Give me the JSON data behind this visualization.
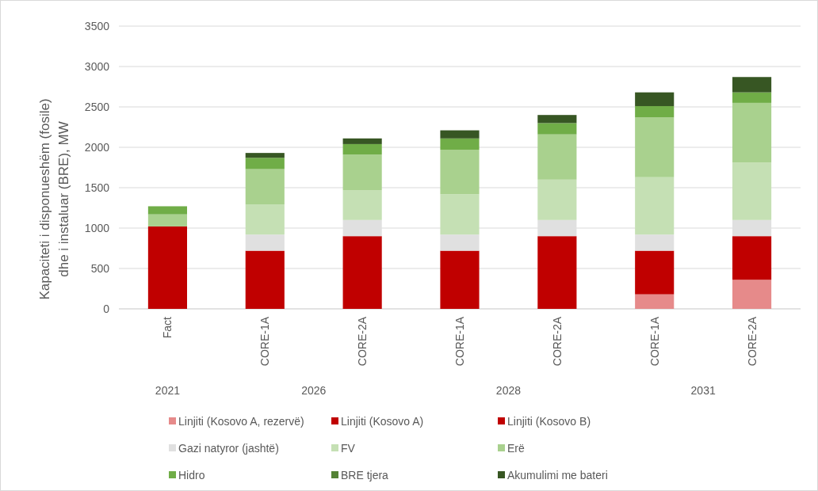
{
  "chart_data": {
    "type": "bar",
    "stacked": true,
    "ylabel": "Kapaciteti i disponueshëm (fosile) dhe i instaluar (BRE), MW",
    "categories": [
      "Fact",
      "CORE-1A",
      "CORE-2A",
      "CORE-1A",
      "CORE-2A",
      "CORE-1A",
      "CORE-2A"
    ],
    "annotations": [
      "2021",
      "2026",
      "2028",
      "2031"
    ],
    "ylim": [
      0,
      3500
    ],
    "yticks": [
      0,
      500,
      1000,
      1500,
      2000,
      2500,
      3000,
      3500
    ],
    "grid": "y",
    "legend": "bottom",
    "series": [
      {
        "name": "Linjiti (Kosovo A,  rezervë)",
        "color": "#e68a8a",
        "values": [
          0,
          0,
          0,
          0,
          0,
          180,
          360
        ]
      },
      {
        "name": "Linjiti (Kosovo A)",
        "color": "#c00000",
        "values": [
          0,
          0,
          0,
          0,
          0,
          0,
          0
        ]
      },
      {
        "name": "Linjiti (Kosovo B)",
        "color": "#c00000",
        "values": [
          1020,
          720,
          900,
          720,
          900,
          540,
          540
        ]
      },
      {
        "name": "Gazi natyror (jashtë)",
        "color": "#e0e0e0",
        "values": [
          0,
          200,
          200,
          200,
          200,
          200,
          200
        ]
      },
      {
        "name": "FV",
        "color": "#c5e0b4",
        "values": [
          0,
          370,
          370,
          500,
          500,
          710,
          710
        ]
      },
      {
        "name": "Erë",
        "color": "#a9d18e",
        "values": [
          150,
          440,
          440,
          550,
          560,
          740,
          740
        ]
      },
      {
        "name": "Hidro",
        "color": "#70ad47",
        "values": [
          100,
          140,
          130,
          140,
          140,
          140,
          130
        ]
      },
      {
        "name": "BRE tjera",
        "color": "#548235",
        "values": [
          0,
          0,
          0,
          0,
          0,
          0,
          0
        ]
      },
      {
        "name": "Akumulimi me bateri",
        "color": "#375623",
        "values": [
          0,
          60,
          70,
          100,
          100,
          170,
          190
        ]
      }
    ]
  }
}
